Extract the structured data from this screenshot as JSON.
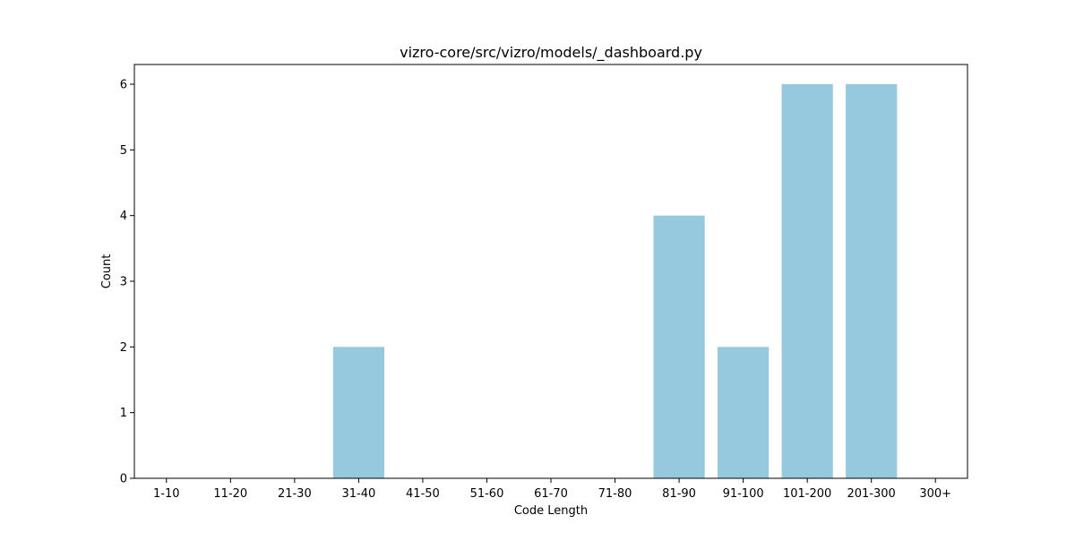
{
  "chart_data": {
    "type": "bar",
    "title": "vizro-core/src/vizro/models/_dashboard.py",
    "xlabel": "Code Length",
    "ylabel": "Count",
    "categories": [
      "1-10",
      "11-20",
      "21-30",
      "31-40",
      "41-50",
      "51-60",
      "61-70",
      "71-80",
      "81-90",
      "91-100",
      "101-200",
      "201-300",
      "300+"
    ],
    "values": [
      0,
      0,
      0,
      2,
      0,
      0,
      0,
      0,
      4,
      2,
      6,
      6,
      0
    ],
    "ylim": [
      0,
      6.3
    ],
    "yticks": [
      "0",
      "1",
      "2",
      "3",
      "4",
      "5",
      "6"
    ],
    "bar_color": "#96c9dd",
    "grid": false,
    "legend": "none"
  }
}
